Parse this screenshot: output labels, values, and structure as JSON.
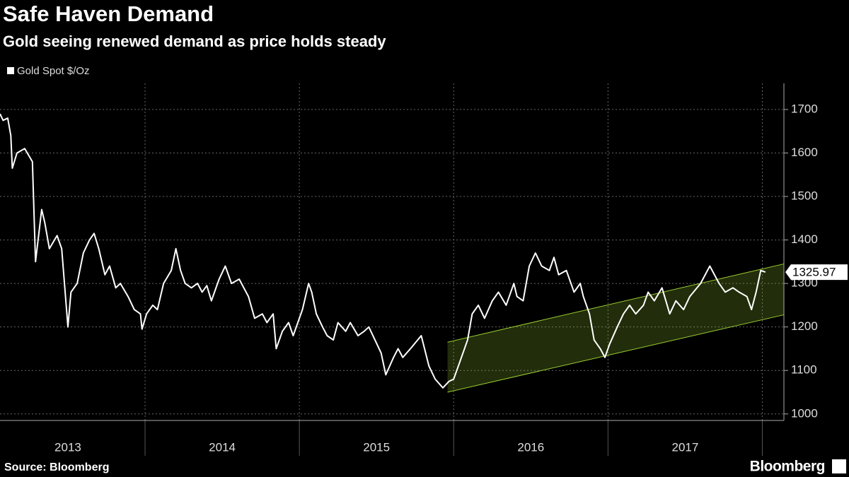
{
  "chart_data": {
    "type": "line",
    "title": "Safe Haven Demand",
    "subtitle": "Gold seeing renewed demand as price holds steady",
    "source": "Source: Bloomberg",
    "brand": "Bloomberg",
    "xlim": [
      2013.06,
      2018.14
    ],
    "ylim": [
      985,
      1760
    ],
    "yticks": [
      1000,
      1100,
      1200,
      1300,
      1400,
      1500,
      1600,
      1700
    ],
    "xticks": [
      {
        "value": 2013.5,
        "label": "2013"
      },
      {
        "value": 2014.5,
        "label": "2014"
      },
      {
        "value": 2015.5,
        "label": "2015"
      },
      {
        "value": 2016.5,
        "label": "2016"
      },
      {
        "value": 2017.5,
        "label": "2017"
      }
    ],
    "grid": true,
    "legend": "top-left",
    "channel": {
      "color": "#9acd32",
      "x": [
        2015.96,
        2018.14
      ],
      "upper": [
        1165,
        1345
      ],
      "lower": [
        1050,
        1228
      ]
    },
    "series": [
      {
        "name": "Gold Spot $/Oz",
        "color": "#ffffff",
        "x": [
          2013.06,
          2013.08,
          2013.11,
          2013.13,
          2013.14,
          2013.17,
          2013.22,
          2013.27,
          2013.29,
          2013.33,
          2013.35,
          2013.38,
          2013.43,
          2013.46,
          2013.48,
          2013.5,
          2013.52,
          2013.56,
          2013.6,
          2013.64,
          2013.67,
          2013.7,
          2013.74,
          2013.77,
          2013.81,
          2013.84,
          2013.89,
          2013.93,
          2013.97,
          2013.98,
          2014.01,
          2014.05,
          2014.08,
          2014.12,
          2014.17,
          2014.2,
          2014.23,
          2014.26,
          2014.3,
          2014.34,
          2014.37,
          2014.4,
          2014.43,
          2014.48,
          2014.52,
          2014.56,
          2014.61,
          2014.64,
          2014.67,
          2014.71,
          2014.76,
          2014.79,
          2014.83,
          2014.85,
          2014.89,
          2014.93,
          2014.96,
          2015.02,
          2015.06,
          2015.08,
          2015.11,
          2015.15,
          2015.18,
          2015.22,
          2015.25,
          2015.3,
          2015.33,
          2015.38,
          2015.42,
          2015.45,
          2015.49,
          2015.53,
          2015.56,
          2015.61,
          2015.64,
          2015.67,
          2015.72,
          2015.79,
          2015.84,
          2015.88,
          2015.93,
          2015.97,
          2016.0,
          2016.04,
          2016.09,
          2016.12,
          2016.16,
          2016.2,
          2016.25,
          2016.29,
          2016.34,
          2016.39,
          2016.41,
          2016.45,
          2016.49,
          2016.53,
          2016.57,
          2016.62,
          2016.65,
          2016.68,
          2016.73,
          2016.78,
          2016.82,
          2016.84,
          2016.88,
          2016.91,
          2016.95,
          2016.98,
          2017.01,
          2017.06,
          2017.1,
          2017.14,
          2017.18,
          2017.23,
          2017.26,
          2017.3,
          2017.35,
          2017.4,
          2017.44,
          2017.49,
          2017.53,
          2017.6,
          2017.66,
          2017.72,
          2017.76,
          2017.81,
          2017.85,
          2017.9,
          2017.93,
          2017.96,
          2017.99,
          2018.02
        ],
        "values": [
          1690,
          1675,
          1680,
          1640,
          1565,
          1600,
          1610,
          1580,
          1350,
          1470,
          1440,
          1380,
          1410,
          1380,
          1290,
          1200,
          1280,
          1300,
          1370,
          1400,
          1415,
          1380,
          1320,
          1340,
          1290,
          1300,
          1270,
          1240,
          1230,
          1195,
          1230,
          1250,
          1240,
          1300,
          1330,
          1380,
          1330,
          1300,
          1290,
          1300,
          1280,
          1295,
          1260,
          1310,
          1340,
          1300,
          1310,
          1290,
          1270,
          1220,
          1230,
          1210,
          1230,
          1150,
          1190,
          1210,
          1180,
          1240,
          1300,
          1280,
          1230,
          1200,
          1180,
          1170,
          1210,
          1190,
          1210,
          1180,
          1190,
          1200,
          1170,
          1140,
          1090,
          1130,
          1150,
          1130,
          1150,
          1180,
          1110,
          1080,
          1060,
          1075,
          1080,
          1120,
          1170,
          1230,
          1250,
          1220,
          1260,
          1280,
          1250,
          1300,
          1270,
          1260,
          1340,
          1370,
          1340,
          1330,
          1360,
          1320,
          1330,
          1280,
          1300,
          1270,
          1230,
          1170,
          1150,
          1130,
          1160,
          1200,
          1230,
          1250,
          1230,
          1250,
          1280,
          1260,
          1290,
          1230,
          1260,
          1240,
          1270,
          1300,
          1340,
          1300,
          1280,
          1290,
          1280,
          1270,
          1240,
          1280,
          1330,
          1325.97
        ]
      }
    ]
  }
}
